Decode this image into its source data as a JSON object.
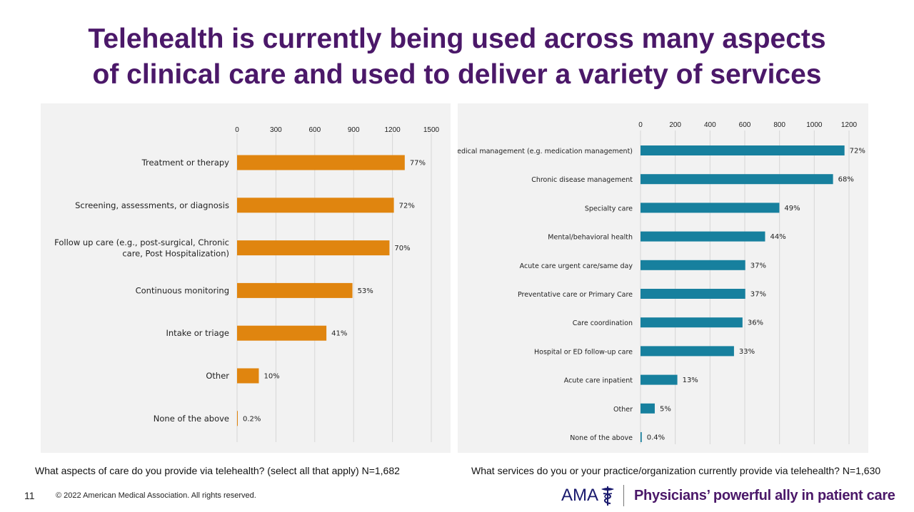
{
  "slide": {
    "title_line1": "Telehealth is currently being used across many aspects",
    "title_line2": "of clinical care and used to deliver a variety of services",
    "page_number": "11",
    "copyright": "© 2022 American Medical Association. All rights reserved.",
    "logo_text": "AMA",
    "tagline": "Physicians’ powerful ally in patient care",
    "accent_color": "#4b1869"
  },
  "chart_data": [
    {
      "type": "bar",
      "orientation": "horizontal",
      "question": "What aspects of care do you provide via telehealth? (select all that apply) N=1,682",
      "categories": [
        "Treatment or therapy",
        "Screening, assessments, or diagnosis",
        "Follow up care (e.g., post-surgical, Chronic care, Post Hospitalization)",
        "Continuous monitoring",
        "Intake or triage",
        "Other",
        "None of the above"
      ],
      "category_lines": [
        [
          "Treatment or therapy"
        ],
        [
          "Screening, assessments, or diagnosis"
        ],
        [
          "Follow up care (e.g., post-surgical, Chronic",
          "care, Post Hospitalization)"
        ],
        [
          "Continuous monitoring"
        ],
        [
          "Intake or triage"
        ],
        [
          "Other"
        ],
        [
          "None of the above"
        ]
      ],
      "values": [
        1295,
        1211,
        1177,
        891,
        690,
        168,
        3
      ],
      "data_labels": [
        "77%",
        "72%",
        "70%",
        "53%",
        "41%",
        "10%",
        "0.2%"
      ],
      "xlim": [
        0,
        1500
      ],
      "ticks": [
        0,
        300,
        600,
        900,
        1200,
        1500
      ],
      "tick_labels": [
        "0",
        "300",
        "600",
        "900",
        "1200",
        "1500"
      ],
      "axis_position": "top",
      "grid": true,
      "bar_color": "#e0850f"
    },
    {
      "type": "bar",
      "orientation": "horizontal",
      "question": "What services do you or your practice/organization currently provide via telehealth? N=1,630",
      "categories": [
        "Medical management (e.g. medication management)",
        "Chronic disease management",
        "Specialty care",
        "Mental/behavioral health",
        "Acute care urgent care/same day",
        "Preventative care or Primary Care",
        "Care coordination",
        "Hospital or ED follow-up care",
        "Acute care inpatient",
        "Other",
        "None of the above"
      ],
      "category_lines": [
        [
          "Medical management (e.g. medication management)"
        ],
        [
          "Chronic disease management"
        ],
        [
          "Specialty care"
        ],
        [
          "Mental/behavioral health"
        ],
        [
          "Acute care urgent care/same day"
        ],
        [
          "Preventative care or Primary Care"
        ],
        [
          "Care coordination"
        ],
        [
          "Hospital or ED follow-up care"
        ],
        [
          "Acute care inpatient"
        ],
        [
          "Other"
        ],
        [
          "None of the above"
        ]
      ],
      "values": [
        1174,
        1108,
        799,
        717,
        603,
        603,
        587,
        538,
        212,
        82,
        7
      ],
      "data_labels": [
        "72%",
        "68%",
        "49%",
        "44%",
        "37%",
        "37%",
        "36%",
        "33%",
        "13%",
        "5%",
        "0.4%"
      ],
      "xlim": [
        0,
        1200
      ],
      "ticks": [
        0,
        200,
        400,
        600,
        800,
        1000,
        1200
      ],
      "tick_labels": [
        "0",
        "200",
        "400",
        "600",
        "800",
        "1000",
        "1200"
      ],
      "axis_position": "top",
      "grid": true,
      "bar_color": "#17809e"
    }
  ]
}
